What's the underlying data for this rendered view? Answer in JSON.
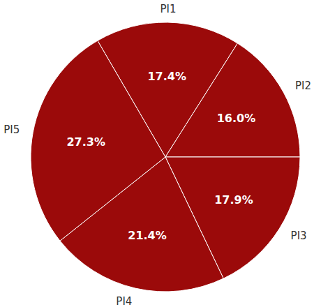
{
  "chart_data": {
    "type": "pie",
    "categories": [
      "PI1",
      "PI2",
      "PI3",
      "PI4",
      "PI5"
    ],
    "values": [
      17.4,
      16.0,
      17.9,
      21.4,
      27.3
    ],
    "value_labels": [
      "17.4%",
      "16.0%",
      "17.9%",
      "21.4%",
      "27.3%"
    ],
    "color": "#9b0a0a",
    "data_labels": true
  }
}
